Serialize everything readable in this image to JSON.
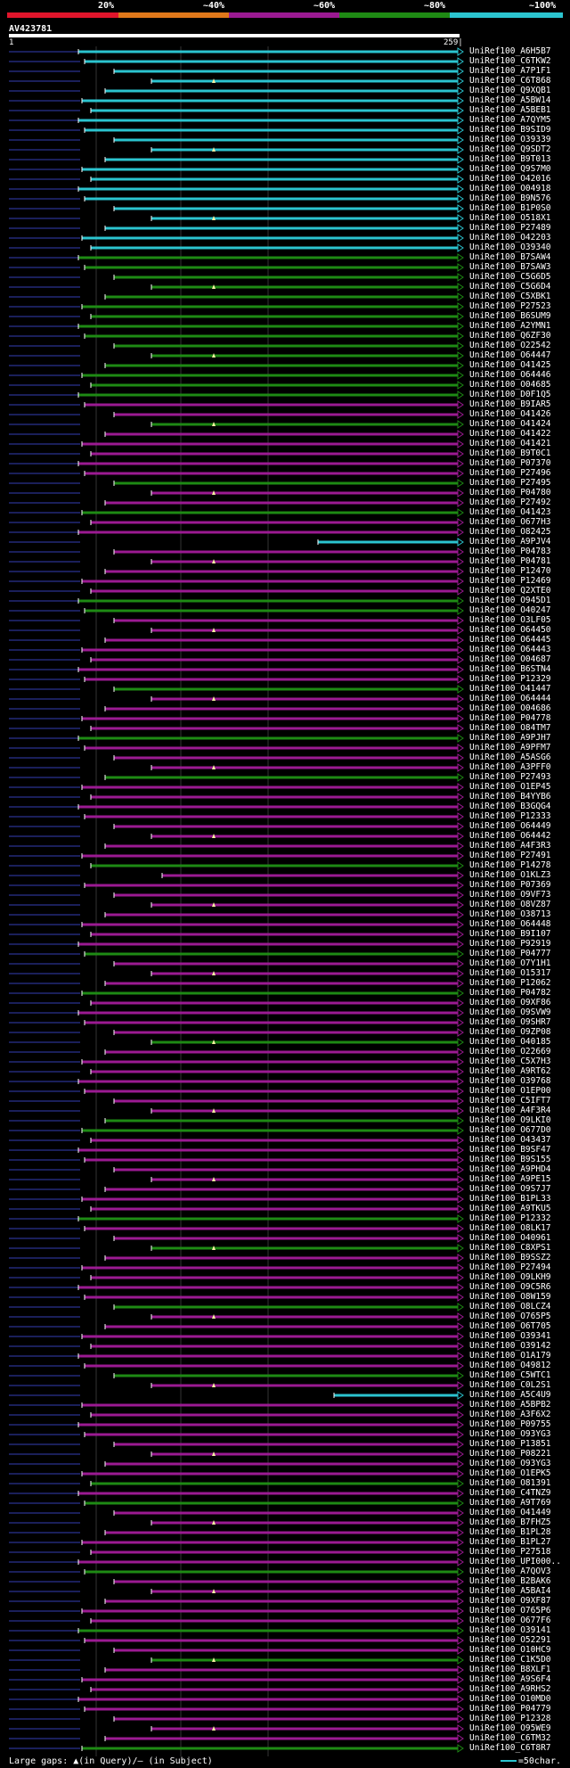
{
  "query": {
    "name": "AV423781",
    "start": "1",
    "end": "259|"
  },
  "legend": {
    "labels": [
      "20%",
      "~40%",
      "~60%",
      "~80%",
      "~100%"
    ],
    "colors": [
      "#e0152b",
      "#e0781a",
      "#9b1a92",
      "#1e8a14",
      "#2bc4cf"
    ]
  },
  "footer": {
    "gaps_text": "Large gaps: ▲(in Query)/– (in Subject)",
    "scale_text": "=50char."
  },
  "hits": [
    "UniRef100_A6H5B7",
    "UniRef100_C6TKW2",
    "UniRef100_A7P1F1",
    "UniRef100_C6T868",
    "UniRef100_Q9XQB1",
    "UniRef100_A5BW14",
    "UniRef100_A5BEB1",
    "UniRef100_A7QYM5",
    "UniRef100_B9SID9",
    "UniRef100_O39339",
    "UniRef100_Q9SDT2",
    "UniRef100_B9T013",
    "UniRef100_Q9S7M0",
    "UniRef100_O42016",
    "UniRef100_O04918",
    "UniRef100_B9N576",
    "UniRef100_B1P0S0",
    "UniRef100_O518X1",
    "UniRef100_P27489",
    "UniRef100_O42203",
    "UniRef100_O39340",
    "UniRef100_B7SAW4",
    "UniRef100_B7SAW3",
    "UniRef100_C5G6D5",
    "UniRef100_C5G6D4",
    "UniRef100_C5XBK1",
    "UniRef100_P27523",
    "UniRef100_B6SUM9",
    "UniRef100_A2YMN1",
    "UniRef100_Q6ZF30",
    "UniRef100_O22542",
    "UniRef100_O64447",
    "UniRef100_O41425",
    "UniRef100_O64446",
    "UniRef100_O04685",
    "UniRef100_D0F1Q5",
    "UniRef100_B9IAR5",
    "UniRef100_O41426",
    "UniRef100_O41424",
    "UniRef100_O41422",
    "UniRef100_O41421",
    "UniRef100_B9T0C1",
    "UniRef100_P07370",
    "UniRef100_P27496",
    "UniRef100_P27495",
    "UniRef100_P04780",
    "UniRef100_P27492",
    "UniRef100_O41423",
    "UniRef100_O677H3",
    "UniRef100_O82425",
    "UniRef100_A9PJV4",
    "UniRef100_P04783",
    "UniRef100_P04781",
    "UniRef100_P12470",
    "UniRef100_P12469",
    "UniRef100_Q2XTE0",
    "UniRef100_O945D1",
    "UniRef100_O40247",
    "UniRef100_O3LF05",
    "UniRef100_O64450",
    "UniRef100_O64445",
    "UniRef100_O64443",
    "UniRef100_O04687",
    "UniRef100_B6STN4",
    "UniRef100_P12329",
    "UniRef100_O41447",
    "UniRef100_O64444",
    "UniRef100_O04686",
    "UniRef100_P04778",
    "UniRef100_O84TM7",
    "UniRef100_A9PJH7",
    "UniRef100_A9PFM7",
    "UniRef100_A5ASG6",
    "UniRef100_A3PFF0",
    "UniRef100_P27493",
    "UniRef100_O1EP45",
    "UniRef100_B4YYB6",
    "UniRef100_B3GQG4",
    "UniRef100_P12333",
    "UniRef100_O64449",
    "UniRef100_O64442",
    "UniRef100_A4F3R3",
    "UniRef100_P27491",
    "UniRef100_P14278",
    "UniRef100_O1KLZ3",
    "UniRef100_P07369",
    "UniRef100_O9VF73",
    "UniRef100_O8VZ87",
    "UniRef100_O38713",
    "UniRef100_O64448",
    "UniRef100_B9I107",
    "UniRef100_P92919",
    "UniRef100_P04777",
    "UniRef100_O7Y1H1",
    "UniRef100_O15317",
    "UniRef100_P12062",
    "UniRef100_P04782",
    "UniRef100_O9XF86",
    "UniRef100_O9SVW9",
    "UniRef100_O9SHR7",
    "UniRef100_O9ZP08",
    "UniRef100_O40185",
    "UniRef100_O22669",
    "UniRef100_C5X7H3",
    "UniRef100_A9RT62",
    "UniRef100_O39768",
    "UniRef100_O1EP00",
    "UniRef100_C5IFT7",
    "UniRef100_A4F3R4",
    "UniRef100_O9LKI0",
    "UniRef100_O677D0",
    "UniRef100_O43437",
    "UniRef100_B9SF47",
    "UniRef100_B9S155",
    "UniRef100_A9PHD4",
    "UniRef100_A9PE15",
    "UniRef100_O9S7J7",
    "UniRef100_B1PL33",
    "UniRef100_A9TKU5",
    "UniRef100_P12332",
    "UniRef100_O8LK17",
    "UniRef100_O40961",
    "UniRef100_C8XPS1",
    "UniRef100_B9SSZ2",
    "UniRef100_P27494",
    "UniRef100_O9LKH9",
    "UniRef100_O9C5R6",
    "UniRef100_O8W159",
    "UniRef100_O8LCZ4",
    "UniRef100_O765P5",
    "UniRef100_O6T705",
    "UniRef100_O39341",
    "UniRef100_O39142",
    "UniRef100_O1A179",
    "UniRef100_O49812",
    "UniRef100_C5WTC1",
    "UniRef100_C0L2S1",
    "UniRef100_A5C4U9",
    "UniRef100_A5BPB2",
    "UniRef100_A3F6X2",
    "UniRef100_P09755",
    "UniRef100_O93YG3",
    "UniRef100_P13851",
    "UniRef100_P08221",
    "UniRef100_O93YG3",
    "UniRef100_O1EPK5",
    "UniRef100_O81391",
    "UniRef100_C4TNZ9",
    "UniRef100_A9T769",
    "UniRef100_O41449",
    "UniRef100_B7FHZ5",
    "UniRef100_B1PL28",
    "UniRef100_B1PL27",
    "UniRef100_P27518",
    "UniRef100_UPI000..",
    "UniRef100_A7QOV3",
    "UniRef100_B2BAK6",
    "UniRef100_A5BAI4",
    "UniRef100_O9XF87",
    "UniRef100_O765P6",
    "UniRef100_O677F6",
    "UniRef100_O39141",
    "UniRef100_O52291",
    "UniRef100_O10HC9",
    "UniRef100_C1K5D0",
    "UniRef100_B8XLF1",
    "UniRef100_A9S6F4",
    "UniRef100_A9RHS2",
    "UniRef100_O10MD0",
    "UniRef100_P04779",
    "UniRef100_P12328",
    "UniRef100_O95WE9",
    "UniRef100_C6TM32",
    "UniRef100_C6T8R7"
  ]
}
